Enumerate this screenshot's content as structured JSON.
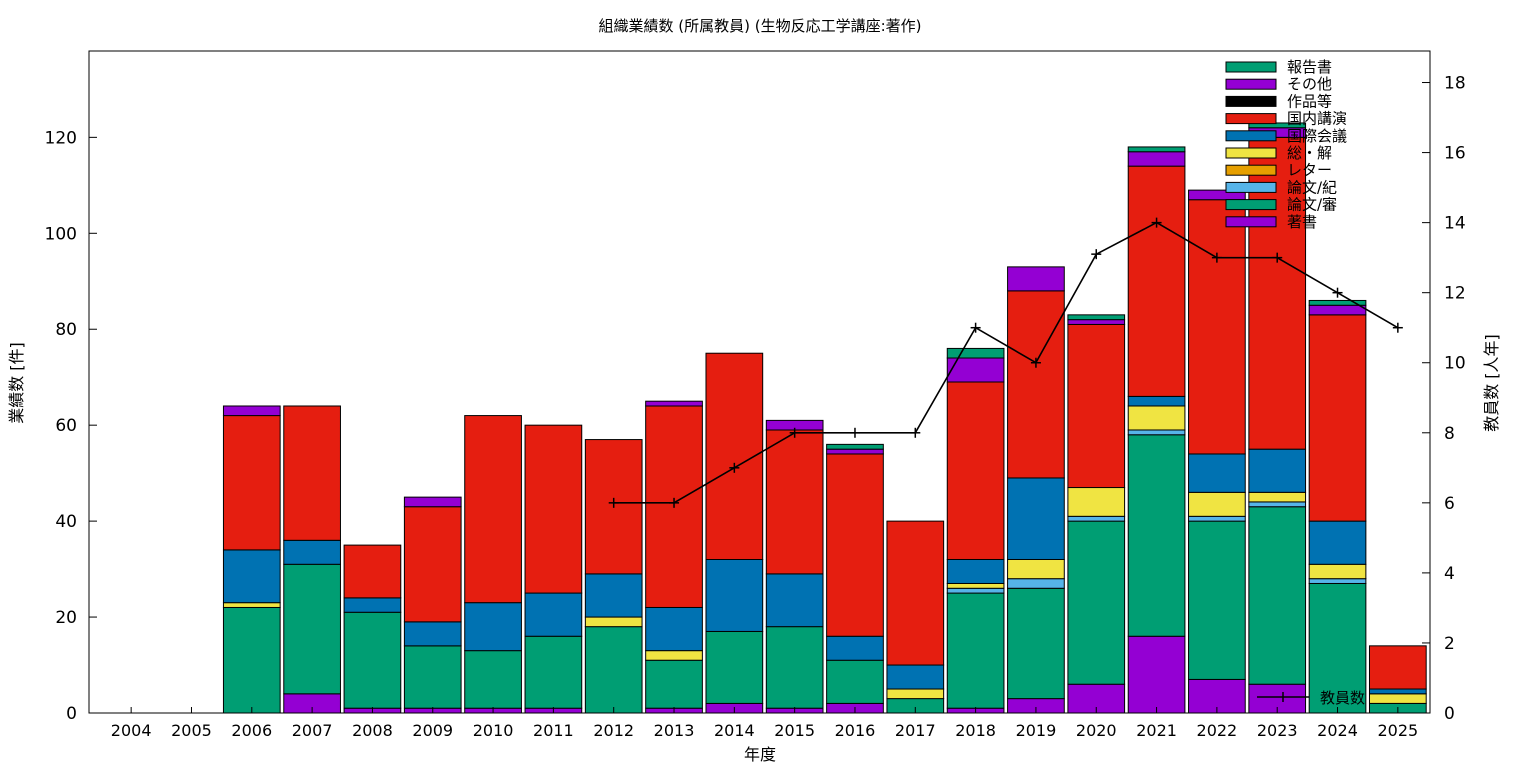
{
  "chart_data": {
    "type": "bar",
    "stacked": true,
    "title": "組織業績数 (所属教員) (生物反応工学講座:著作)",
    "xlabel": "年度",
    "ylabel": "業績数 [件]",
    "y2label": "教員数 [人年]",
    "ylim": [
      0,
      138
    ],
    "y2lim": [
      0,
      18.9
    ],
    "yticks": [
      0,
      20,
      40,
      60,
      80,
      100,
      120
    ],
    "y2ticks": [
      0,
      2,
      4,
      6,
      8,
      10,
      12,
      14,
      16,
      18
    ],
    "grid": false,
    "legend_position": "top-right",
    "categories": [
      "2004",
      "2005",
      "2006",
      "2007",
      "2008",
      "2009",
      "2010",
      "2011",
      "2012",
      "2013",
      "2014",
      "2015",
      "2016",
      "2017",
      "2018",
      "2019",
      "2020",
      "2021",
      "2022",
      "2023",
      "2024",
      "2025"
    ],
    "series": [
      {
        "name": "著書",
        "color": "#9400d3",
        "values": [
          0,
          0,
          0,
          4,
          1,
          1,
          1,
          1,
          0,
          1,
          2,
          1,
          2,
          0,
          1,
          3,
          6,
          16,
          7,
          6,
          0,
          0
        ]
      },
      {
        "name": "論文/審",
        "color": "#009e73",
        "values": [
          0,
          0,
          22,
          27,
          20,
          13,
          12,
          15,
          18,
          10,
          15,
          17,
          9,
          3,
          24,
          23,
          34,
          42,
          33,
          37,
          27,
          2
        ]
      },
      {
        "name": "論文/紀",
        "color": "#56b4e9",
        "values": [
          0,
          0,
          0,
          0,
          0,
          0,
          0,
          0,
          0,
          0,
          0,
          0,
          0,
          0,
          1,
          2,
          1,
          1,
          1,
          1,
          1,
          0
        ]
      },
      {
        "name": "レター",
        "color": "#e69f00",
        "values": [
          0,
          0,
          0,
          0,
          0,
          0,
          0,
          0,
          0,
          0,
          0,
          0,
          0,
          0,
          0,
          0,
          0,
          0,
          0,
          0,
          0,
          0
        ]
      },
      {
        "name": "総・解",
        "color": "#f0e442",
        "values": [
          0,
          0,
          1,
          0,
          0,
          0,
          0,
          0,
          2,
          2,
          0,
          0,
          0,
          2,
          1,
          4,
          6,
          5,
          5,
          2,
          3,
          2
        ]
      },
      {
        "name": "国際会議",
        "color": "#0072b2",
        "values": [
          0,
          0,
          11,
          5,
          3,
          5,
          10,
          9,
          9,
          9,
          15,
          11,
          5,
          5,
          5,
          17,
          0,
          2,
          8,
          9,
          9,
          1
        ]
      },
      {
        "name": "国内講演",
        "color": "#e51e10",
        "values": [
          0,
          0,
          28,
          28,
          11,
          24,
          39,
          35,
          28,
          42,
          43,
          30,
          38,
          30,
          37,
          39,
          34,
          48,
          53,
          65,
          43,
          9
        ]
      },
      {
        "name": "作品等",
        "color": "#000000",
        "values": [
          0,
          0,
          0,
          0,
          0,
          0,
          0,
          0,
          0,
          0,
          0,
          0,
          0,
          0,
          0,
          0,
          0,
          0,
          0,
          0,
          0,
          0
        ]
      },
      {
        "name": "その他",
        "color": "#9400d3",
        "values": [
          0,
          0,
          2,
          0,
          0,
          2,
          0,
          0,
          0,
          1,
          0,
          2,
          1,
          0,
          5,
          5,
          1,
          3,
          2,
          2,
          2,
          0
        ]
      },
      {
        "name": "報告書",
        "color": "#009e73",
        "values": [
          0,
          0,
          0,
          0,
          0,
          0,
          0,
          0,
          0,
          0,
          0,
          0,
          1,
          0,
          2,
          0,
          1,
          1,
          0,
          1,
          1,
          0
        ]
      }
    ],
    "line_series": {
      "name": "教員数",
      "axis": "right",
      "color": "#000000",
      "x": [
        "2012",
        "2013",
        "2014",
        "2015",
        "2016",
        "2017",
        "2018",
        "2019",
        "2020",
        "2021",
        "2022",
        "2023",
        "2024",
        "2025"
      ],
      "values": [
        6,
        6,
        7,
        8,
        8,
        8,
        11,
        10,
        13.1,
        14,
        13,
        13,
        12,
        11
      ]
    },
    "legend_order": [
      "報告書",
      "その他",
      "作品等",
      "国内講演",
      "国際会議",
      "総・解",
      "レター",
      "論文/紀",
      "論文/審",
      "著書"
    ]
  }
}
